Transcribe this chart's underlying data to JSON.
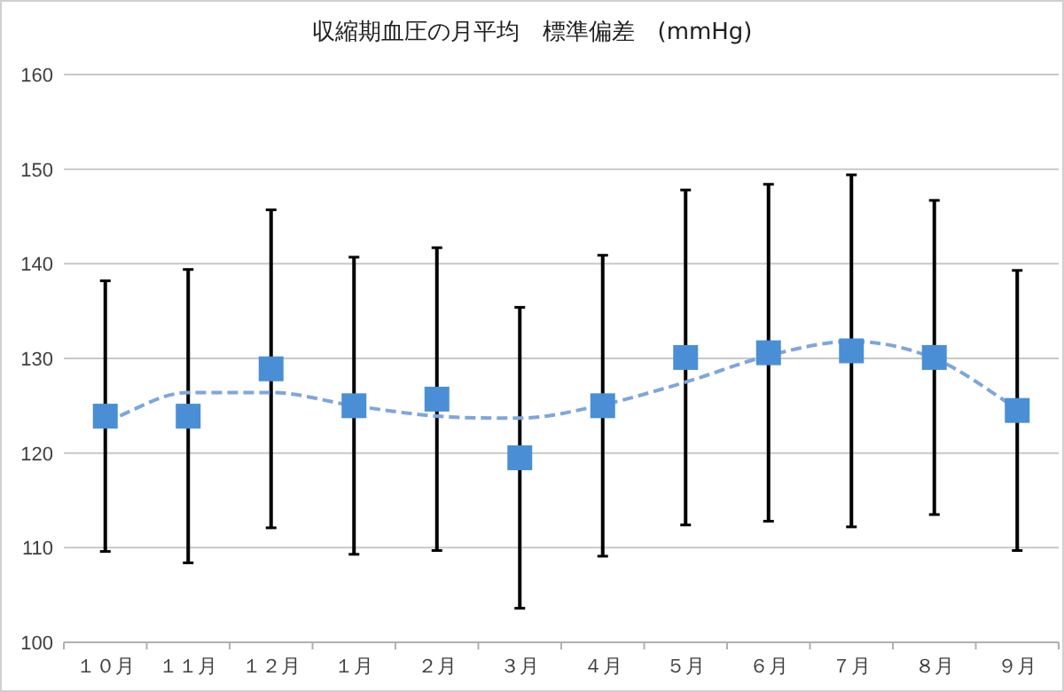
{
  "chart_data": {
    "type": "scatter",
    "title": "収縮期血圧の月平均　標準偏差　(mmHg)",
    "categories": [
      "１０月",
      "１１月",
      "１２月",
      "１月",
      "２月",
      "３月",
      "４月",
      "５月",
      "６月",
      "７月",
      "８月",
      "９月"
    ],
    "ylim": [
      100,
      160
    ],
    "yticks": [
      100,
      110,
      120,
      130,
      140,
      150,
      160
    ],
    "grid": "y",
    "series": [
      {
        "type": "scatter",
        "color": "#4a8fd6",
        "marker": "square",
        "values": [
          123.9,
          123.9,
          128.9,
          125.0,
          125.7,
          119.5,
          125.0,
          130.1,
          130.6,
          130.8,
          130.1,
          124.5
        ],
        "errors": [
          14.3,
          15.5,
          16.8,
          15.7,
          16.0,
          15.9,
          15.9,
          17.7,
          17.8,
          18.6,
          16.6,
          14.8
        ]
      },
      {
        "type": "line",
        "color": "#7ea6dc",
        "line_style": "dashed",
        "marker": "none",
        "values": [
          123.3,
          126.4,
          126.4,
          125.0,
          123.9,
          123.7,
          125.1,
          127.5,
          130.3,
          131.8,
          130.0,
          124.7
        ]
      }
    ]
  }
}
